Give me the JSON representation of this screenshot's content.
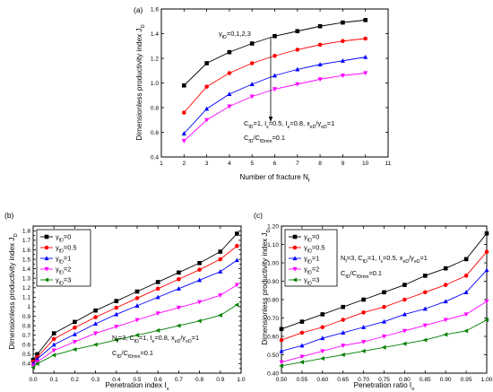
{
  "chart_data": [
    {
      "id": "a",
      "type": "line",
      "panel_label": "(a)",
      "xlabel": "Number of fracture N",
      "xlabel_sub": "f",
      "ylabel": "Dimensionless productivity index J",
      "ylabel_sub": "D",
      "xlim": [
        1,
        11
      ],
      "ylim": [
        0.4,
        1.6
      ],
      "xticks": [
        1,
        2,
        3,
        4,
        5,
        6,
        7,
        8,
        9,
        10,
        11
      ],
      "yticks": [
        0.4,
        0.6,
        0.8,
        1.0,
        1.2,
        1.4,
        1.6
      ],
      "x": [
        2,
        3,
        4,
        5,
        6,
        7,
        8,
        9,
        10
      ],
      "series": [
        {
          "color": "#000000",
          "marker": "square",
          "values": [
            0.98,
            1.16,
            1.25,
            1.32,
            1.38,
            1.42,
            1.46,
            1.49,
            1.51
          ]
        },
        {
          "color": "#ff0000",
          "marker": "circle",
          "values": [
            0.76,
            0.97,
            1.08,
            1.16,
            1.22,
            1.27,
            1.31,
            1.34,
            1.36
          ]
        },
        {
          "color": "#0000ff",
          "marker": "triangle",
          "values": [
            0.59,
            0.79,
            0.91,
            0.99,
            1.06,
            1.11,
            1.15,
            1.18,
            1.21
          ]
        },
        {
          "color": "#ff00ff",
          "marker": "triangle-down",
          "values": [
            0.53,
            0.7,
            0.81,
            0.89,
            0.95,
            0.99,
            1.03,
            1.06,
            1.08
          ]
        }
      ],
      "annotation_arrow": {
        "label": "γ",
        "label_sub": "fD",
        "label_rest": "=0,1,2,3"
      },
      "annotations": [
        {
          "parts": [
            [
              "C",
              "fD"
            ],
            [
              "=1, I",
              ""
            ],
            [
              "x",
              "x"
            ],
            [
              "=0.5, I",
              ""
            ],
            [
              "e",
              "e"
            ],
            [
              "=0.8, x",
              ""
            ],
            [
              "eD",
              "eD"
            ],
            [
              "/y",
              ""
            ],
            [
              "eD",
              "eD"
            ],
            [
              "=1",
              ""
            ]
          ]
        },
        {
          "parts": [
            [
              "C",
              "fD"
            ],
            [
              "/C",
              ""
            ],
            [
              "fDmin",
              "fDmin"
            ],
            [
              "=0.1",
              ""
            ]
          ]
        }
      ]
    },
    {
      "id": "b",
      "type": "line",
      "panel_label": "(b)",
      "xlabel": "Penetration index I",
      "xlabel_sub": "x",
      "ylabel": "Dimensionless productivity index J",
      "ylabel_sub": "D",
      "xlim": [
        0.0,
        1.0
      ],
      "ylim": [
        0.3,
        1.85
      ],
      "xticks": [
        0.0,
        0.1,
        0.2,
        0.3,
        0.4,
        0.5,
        0.6,
        0.7,
        0.8,
        0.9,
        1.0
      ],
      "yticks": [
        0.3,
        0.35,
        0.4,
        0.45,
        0.5,
        0.55,
        0.6,
        0.65,
        0.7,
        0.75,
        0.8,
        0.85,
        0.9,
        0.95,
        1.0,
        1.05,
        1.1,
        1.15,
        1.2,
        1.25,
        1.3,
        1.35,
        1.4,
        1.45,
        1.5,
        1.55,
        1.6,
        1.65,
        1.7,
        1.75,
        1.8
      ],
      "ytick_labels": [
        "",
        "",
        "0.4",
        "",
        "0.5",
        "",
        "0.6",
        "",
        "0.7",
        "",
        "0.8",
        "",
        "0.9",
        "",
        "1",
        "",
        "1.1",
        "",
        "1.2",
        "",
        "1.3",
        "",
        "1.4",
        "",
        "1.5",
        "",
        "1.6",
        "",
        "1.7",
        "",
        "1.8"
      ],
      "x": [
        0.0,
        0.02,
        0.1,
        0.2,
        0.3,
        0.4,
        0.5,
        0.6,
        0.7,
        0.8,
        0.9,
        0.98
      ],
      "series": [
        {
          "name": "γ",
          "name_sub": "fD",
          "name_rest": "=0",
          "color": "#000000",
          "marker": "square",
          "values": [
            0.44,
            0.5,
            0.72,
            0.84,
            0.96,
            1.06,
            1.16,
            1.26,
            1.36,
            1.46,
            1.58,
            1.77
          ]
        },
        {
          "name": "γ",
          "name_sub": "fD",
          "name_rest": "=0.5",
          "color": "#ff0000",
          "marker": "circle",
          "values": [
            0.42,
            0.47,
            0.66,
            0.78,
            0.89,
            0.99,
            1.09,
            1.19,
            1.29,
            1.39,
            1.5,
            1.64
          ]
        },
        {
          "name": "γ",
          "name_sub": "fD",
          "name_rest": "=1",
          "color": "#0000ff",
          "marker": "triangle",
          "values": [
            0.4,
            0.45,
            0.6,
            0.71,
            0.82,
            0.92,
            1.01,
            1.1,
            1.19,
            1.28,
            1.37,
            1.49
          ]
        },
        {
          "name": "γ",
          "name_sub": "fD",
          "name_rest": "=2",
          "color": "#ff00ff",
          "marker": "triangle-down",
          "values": [
            0.38,
            0.42,
            0.54,
            0.63,
            0.72,
            0.79,
            0.86,
            0.93,
            0.99,
            1.05,
            1.12,
            1.23
          ]
        },
        {
          "name": "γ",
          "name_sub": "fD",
          "name_rest": "=3",
          "color": "#008000",
          "marker": "triangle-left",
          "values": [
            0.36,
            0.4,
            0.49,
            0.55,
            0.6,
            0.65,
            0.7,
            0.75,
            0.8,
            0.85,
            0.91,
            1.02
          ]
        }
      ],
      "legend_position": "upper-left",
      "annotations": [
        {
          "parts": [
            [
              "N",
              "f"
            ],
            [
              "=3, C",
              ""
            ],
            [
              "fD",
              "fD"
            ],
            [
              "=1, I",
              ""
            ],
            [
              "e",
              "e"
            ],
            [
              "=0.8, x",
              ""
            ],
            [
              "eD",
              "eD"
            ],
            [
              "/y",
              ""
            ],
            [
              "eD",
              "eD"
            ],
            [
              "=1",
              ""
            ]
          ]
        },
        {
          "parts": [
            [
              "C",
              "fD"
            ],
            [
              "/C",
              ""
            ],
            [
              "fDmin",
              "fDmin"
            ],
            [
              "=0.1",
              ""
            ]
          ]
        }
      ]
    },
    {
      "id": "c",
      "type": "line",
      "panel_label": "(c)",
      "xlabel": "Penetration ratio I",
      "xlabel_sub": "e",
      "ylabel": "Dimensionless productivity index J",
      "ylabel_sub": "D",
      "xlim": [
        0.5,
        1.0
      ],
      "ylim": [
        0.4,
        1.2
      ],
      "xticks": [
        0.5,
        0.55,
        0.6,
        0.65,
        0.7,
        0.75,
        0.8,
        0.85,
        0.9,
        0.95,
        1.0
      ],
      "yticks": [
        0.4,
        0.5,
        0.6,
        0.7,
        0.8,
        0.9,
        1.0,
        1.1,
        1.2
      ],
      "x": [
        0.5,
        0.55,
        0.6,
        0.65,
        0.7,
        0.75,
        0.8,
        0.85,
        0.9,
        0.95,
        1.0
      ],
      "series": [
        {
          "name": "γ",
          "name_sub": "fD",
          "name_rest": "=0",
          "color": "#000000",
          "marker": "square",
          "values": [
            0.64,
            0.68,
            0.72,
            0.76,
            0.8,
            0.84,
            0.88,
            0.93,
            0.97,
            1.02,
            1.16
          ]
        },
        {
          "name": "γ",
          "name_sub": "fD",
          "name_rest": "=0.5",
          "color": "#ff0000",
          "marker": "circle",
          "values": [
            0.58,
            0.62,
            0.65,
            0.69,
            0.73,
            0.76,
            0.8,
            0.84,
            0.88,
            0.93,
            1.06
          ]
        },
        {
          "name": "γ",
          "name_sub": "fD",
          "name_rest": "=1",
          "color": "#0000ff",
          "marker": "triangle",
          "values": [
            0.52,
            0.55,
            0.59,
            0.62,
            0.65,
            0.68,
            0.72,
            0.75,
            0.79,
            0.84,
            0.96
          ]
        },
        {
          "name": "γ",
          "name_sub": "fD",
          "name_rest": "=2",
          "color": "#ff00ff",
          "marker": "triangle-down",
          "values": [
            0.46,
            0.49,
            0.52,
            0.55,
            0.57,
            0.6,
            0.63,
            0.66,
            0.69,
            0.72,
            0.79
          ]
        },
        {
          "name": "γ",
          "name_sub": "fD",
          "name_rest": "=3",
          "color": "#008000",
          "marker": "triangle-left",
          "values": [
            0.44,
            0.46,
            0.48,
            0.5,
            0.52,
            0.54,
            0.56,
            0.58,
            0.61,
            0.63,
            0.69
          ]
        }
      ],
      "legend_position": "upper-left",
      "annotations": [
        {
          "parts": [
            [
              "N",
              "f"
            ],
            [
              "=3, C",
              ""
            ],
            [
              "fD",
              "fD"
            ],
            [
              "=1, I",
              ""
            ],
            [
              "x",
              "x"
            ],
            [
              "=0.5, x",
              ""
            ],
            [
              "eD",
              "eD"
            ],
            [
              "/y",
              ""
            ],
            [
              "eD",
              "eD"
            ],
            [
              "=1",
              ""
            ]
          ]
        },
        {
          "parts": [
            [
              "C",
              "fD"
            ],
            [
              "/C",
              ""
            ],
            [
              "fDmin",
              "fDmin"
            ],
            [
              "=0.1",
              ""
            ]
          ]
        }
      ]
    }
  ]
}
